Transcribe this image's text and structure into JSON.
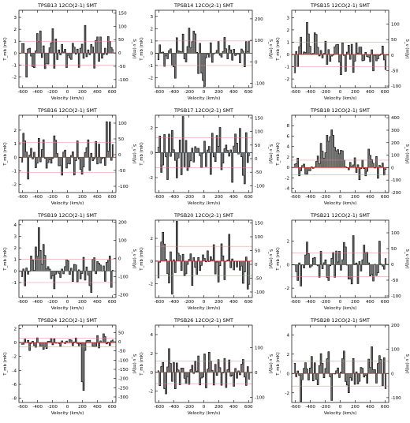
{
  "colors": {
    "spectrum": "#000000",
    "zero_line": "#d62020",
    "rms_line": "#e08a8a"
  },
  "chart_data": [
    {
      "type": "bar",
      "title": "TPSB13 12CO(2-1) SMT",
      "xlabel": "Velocity (km/s)",
      "ylabel_left": "T_mb (mK)",
      "ylabel_right": "S_ν (mJy)",
      "xlim": [
        -650,
        650
      ],
      "ylim_left": [
        -2.9,
        3.6
      ],
      "xticks": [
        -600,
        -400,
        -200,
        0,
        200,
        400,
        600
      ],
      "yticks_left": [
        -2,
        -1,
        0,
        1,
        2,
        3
      ],
      "ylim_right": [
        -130,
        160
      ],
      "yticks_right": [
        -100,
        -50,
        0,
        50,
        100,
        150
      ],
      "rms": 1.0,
      "zero": 0.0,
      "seed": 13,
      "noise": 1.1
    },
    {
      "type": "bar",
      "title": "TPSB14 12CO(2-1) SMT",
      "xlabel": "Velocity (km/s)",
      "ylabel_left": "T_mb (mK)",
      "ylabel_right": "S_ν (mJy)",
      "xlim": [
        -650,
        650
      ],
      "ylim_left": [
        -2.8,
        3.5
      ],
      "xticks": [
        -600,
        -400,
        -200,
        0,
        200,
        400,
        600
      ],
      "yticks_left": [
        -2,
        -1,
        0,
        1,
        2,
        3
      ],
      "ylim_right": [
        -120,
        240
      ],
      "yticks_right": [
        -100,
        0,
        100,
        200
      ],
      "rms": 1.0,
      "zero": 0.0,
      "seed": 14,
      "noise": 1.1
    },
    {
      "type": "bar",
      "title": "TPSB15 12CO(2-1) SMT",
      "xlabel": "Velocity (km/s)",
      "ylabel_left": "T_mb (mK)",
      "ylabel_right": "S_ν (mJy)",
      "xlim": [
        -650,
        650
      ],
      "ylim_left": [
        -2.7,
        3.6
      ],
      "xticks": [
        -600,
        -400,
        -200,
        0,
        200,
        400,
        600
      ],
      "yticks_left": [
        -2,
        -1,
        0,
        1,
        2,
        3
      ],
      "ylim_right": [
        -105,
        145
      ],
      "yticks_right": [
        -100,
        -50,
        0,
        50,
        100
      ],
      "rms": 1.0,
      "zero": 0.0,
      "seed": 15,
      "noise": 1.0
    },
    {
      "type": "bar",
      "title": "TPSB16 12CO(2-1) SMT",
      "xlabel": "Velocity (km/s)",
      "ylabel_left": "T_mb (mK)",
      "ylabel_right": "S_ν (mJy)",
      "xlim": [
        -650,
        650
      ],
      "ylim_left": [
        -2.6,
        3.1
      ],
      "xticks": [
        -600,
        -400,
        -200,
        0,
        200,
        400,
        600
      ],
      "yticks_left": [
        -2,
        -1,
        0,
        1,
        2
      ],
      "ylim_right": [
        -120,
        125
      ],
      "yticks_right": [
        -100,
        -50,
        0,
        50,
        100
      ],
      "rms": 1.1,
      "zero": 0.0,
      "seed": 16,
      "noise": 1.1
    },
    {
      "type": "bar",
      "title": "TPSB17 12CO(2-1) SMT",
      "xlabel": "Velocity (km/s)",
      "ylabel_left": "T_mb (mK)",
      "ylabel_right": "S_ν (mJy)",
      "xlim": [
        -650,
        650
      ],
      "ylim_left": [
        -3.2,
        3.0
      ],
      "xticks": [
        -600,
        -400,
        -200,
        0,
        200,
        400,
        600
      ],
      "yticks_left": [
        -2,
        0,
        2
      ],
      "ylim_right": [
        -125,
        160
      ],
      "yticks_right": [
        -100,
        -50,
        0,
        50,
        100,
        150
      ],
      "rms": 1.2,
      "zero": 0.0,
      "seed": 17,
      "noise": 1.3
    },
    {
      "type": "bar",
      "title": "TPSB18 12CO(2-1) SMT",
      "xlabel": "Velocity (km/s)",
      "ylabel_left": "T_mb (mK)",
      "ylabel_right": "S_ν (mJy)",
      "xlim": [
        -650,
        650
      ],
      "ylim_left": [
        -4.8,
        10.0
      ],
      "xticks": [
        -600,
        -400,
        -200,
        0,
        200,
        400,
        600
      ],
      "yticks_left": [
        -4,
        -2,
        0,
        2,
        4,
        6,
        8
      ],
      "ylim_right": [
        -200,
        420
      ],
      "yticks_right": [
        -200,
        -100,
        0,
        100,
        200,
        300,
        400
      ],
      "rms": 1.4,
      "zero": 0.0,
      "seed": 18,
      "noise": 1.4,
      "lines": [
        {
          "center": -140,
          "width": 90,
          "peak": 5.5
        }
      ]
    },
    {
      "type": "bar",
      "title": "TPSB19 12CO(2-1) SMT",
      "xlabel": "Velocity (km/s)",
      "ylabel_left": "T_mb (mK)",
      "ylabel_right": "S_ν (mJy)",
      "xlim": [
        -650,
        650
      ],
      "ylim_left": [
        -2.3,
        4.4
      ],
      "xticks": [
        -600,
        -400,
        -200,
        0,
        200,
        400,
        600
      ],
      "yticks_left": [
        -1,
        0,
        1,
        2,
        3,
        4
      ],
      "ylim_right": [
        -215,
        210
      ],
      "yticks_right": [
        -200,
        -100,
        0,
        100,
        200
      ],
      "rms": 1.0,
      "zero": 0.0,
      "seed": 19,
      "noise": 1.0,
      "lines": [
        {
          "center": -380,
          "width": 70,
          "peak": 1.3
        }
      ]
    },
    {
      "type": "bar",
      "title": "TPSB20 12CO(2-1) SMT",
      "xlabel": "Velocity (km/s)",
      "ylabel_left": "T_mb (mK)",
      "ylabel_right": "S_ν (mJy)",
      "xlim": [
        -650,
        650
      ],
      "ylim_left": [
        -3.2,
        3.6
      ],
      "xticks": [
        -600,
        -400,
        -200,
        0,
        200,
        400,
        600
      ],
      "yticks_left": [
        -2,
        0,
        2
      ],
      "ylim_right": [
        -120,
        160
      ],
      "yticks_right": [
        -100,
        -50,
        0,
        50,
        100,
        150
      ],
      "rms": 1.3,
      "zero": 0.0,
      "seed": 20,
      "noise": 1.3
    },
    {
      "type": "bar",
      "title": "TPSB21 12CO(2-1) SMT",
      "xlabel": "Velocity (km/s)",
      "ylabel_left": "T_mb (mK)",
      "ylabel_right": "S_ν (mJy)",
      "xlim": [
        -650,
        650
      ],
      "ylim_left": [
        -2.8,
        3.8
      ],
      "xticks": [
        -600,
        -400,
        -200,
        0,
        200,
        400,
        600
      ],
      "yticks_left": [
        -2,
        0,
        2
      ],
      "ylim_right": [
        -105,
        140
      ],
      "yticks_right": [
        -100,
        -50,
        0,
        50,
        100
      ],
      "rms": 1.0,
      "zero": 0.0,
      "seed": 21,
      "noise": 1.1
    },
    {
      "type": "bar",
      "title": "TPSB24 12CO(2-1) SMT",
      "xlabel": "Velocity (km/s)",
      "ylabel_left": "T_mb (mK)",
      "ylabel_right": "S_ν (mJy)",
      "xlim": [
        -650,
        650
      ],
      "ylim_left": [
        -8.6,
        2.5
      ],
      "xticks": [
        -600,
        -400,
        -200,
        0,
        200,
        400,
        600
      ],
      "yticks_left": [
        -8,
        -6,
        -4,
        -2,
        0,
        2
      ],
      "ylim_right": [
        -330,
        90
      ],
      "yticks_right": [
        -300,
        -250,
        -200,
        -150,
        -100,
        -50,
        0,
        50
      ],
      "rms": 0.6,
      "zero": 0.0,
      "seed": 24,
      "noise": 0.6,
      "lines": [
        {
          "center": 200,
          "width": 14,
          "peak": -8.0
        }
      ]
    },
    {
      "type": "bar",
      "title": "TPSB26 12CO(2-1) SMT",
      "xlabel": "Velocity (km/s)",
      "ylabel_left": "T_mb (mK)",
      "ylabel_right": "S_ν (mJy)",
      "xlim": [
        -650,
        650
      ],
      "ylim_left": [
        -3.2,
        5.0
      ],
      "xticks": [
        -600,
        -400,
        -200,
        0,
        200,
        400,
        600
      ],
      "yticks_left": [
        -2,
        0,
        2,
        4
      ],
      "ylim_right": [
        -120,
        190
      ],
      "yticks_right": [
        -100,
        0,
        100
      ],
      "rms": 1.2,
      "zero": 0.0,
      "seed": 26,
      "noise": 1.2
    },
    {
      "type": "bar",
      "title": "TPSB28 12CO(2-1) SMT",
      "xlabel": "Velocity (km/s)",
      "ylabel_left": "T_mb (mK)",
      "ylabel_right": "S_ν (mJy)",
      "xlim": [
        -650,
        650
      ],
      "ylim_left": [
        -3.0,
        5.0
      ],
      "xticks": [
        -600,
        -400,
        -200,
        0,
        200,
        400,
        600
      ],
      "yticks_left": [
        -2,
        0,
        2,
        4
      ],
      "ylim_right": [
        -120,
        200
      ],
      "yticks_right": [
        -100,
        0,
        100,
        200
      ],
      "rms": 1.3,
      "zero": 0.0,
      "seed": 28,
      "noise": 1.3
    }
  ]
}
